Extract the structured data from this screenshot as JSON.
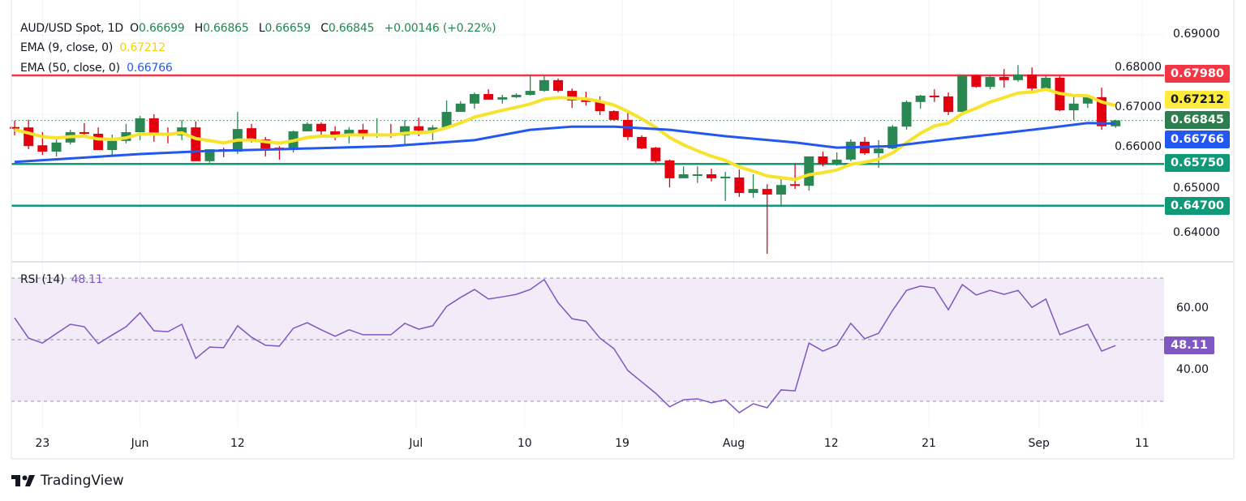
{
  "legend": {
    "symbol": "AUD/USD Spot, 1D",
    "open_label": "O",
    "open": "0.66699",
    "high_label": "H",
    "high": "0.66865",
    "low_label": "L",
    "low": "0.66659",
    "close_label": "C",
    "close": "0.66845",
    "change": "+0.00146 (+0.22%)",
    "ema9_label": "EMA (9, close, 0)",
    "ema9_value": "0.67212",
    "ema50_label": "EMA (50, close, 0)",
    "ema50_value": "0.66766",
    "rsi_label": "RSI (14)",
    "rsi_value": "48.11"
  },
  "badges": {
    "resistance": "0.67980",
    "ema9": "0.67212",
    "close": "0.66845",
    "ema50": "0.66766",
    "support1": "0.65750",
    "support2": "0.64700",
    "rsi": "48.11"
  },
  "colors": {
    "up": "#2b8752",
    "down": "#e3000f",
    "ema9": "#f7e32d",
    "ema50": "#2358f0",
    "resistance": "#f23645",
    "support": "#0f9979",
    "rsi": "#7e57c2",
    "rsi_band": "#f1ecf8"
  },
  "branding": "TradingView",
  "chart_data": {
    "type": "candlestick",
    "title": "AUD/USD Spot, 1D",
    "price_ticks": [
      "0.69000",
      "0.68000",
      "0.67000",
      "0.66000",
      "0.65000",
      "0.64000"
    ],
    "price_range": [
      0.6335,
      0.6988
    ],
    "rsi_ticks": [
      "60.00",
      "40.00"
    ],
    "rsi_levels": [
      70,
      50,
      30
    ],
    "rsi_range": [
      23.5,
      73.5
    ],
    "horizontal_levels": [
      {
        "value": 0.6798,
        "kind": "resistance"
      },
      {
        "value": 0.6575,
        "kind": "support"
      },
      {
        "value": 0.647,
        "kind": "support"
      }
    ],
    "x_ticks": [
      {
        "label": "23",
        "index": 2
      },
      {
        "label": "Jun",
        "index": 9
      },
      {
        "label": "12",
        "index": 16
      },
      {
        "label": "Jul",
        "index": 28.8
      },
      {
        "label": "10",
        "index": 36.6
      },
      {
        "label": "19",
        "index": 43.6
      },
      {
        "label": "Aug",
        "index": 51.6
      },
      {
        "label": "12",
        "index": 58.6
      },
      {
        "label": "21",
        "index": 65.6
      },
      {
        "label": "Sep",
        "index": 73.5
      },
      {
        "label": "11",
        "index": 80.9
      }
    ],
    "ohlc": [
      [
        0.6668,
        0.6684,
        0.6647,
        0.6666
      ],
      [
        0.6667,
        0.6686,
        0.6612,
        0.662
      ],
      [
        0.6622,
        0.6655,
        0.6598,
        0.6606
      ],
      [
        0.6606,
        0.6637,
        0.6594,
        0.6629
      ],
      [
        0.6629,
        0.6661,
        0.6624,
        0.6655
      ],
      [
        0.6655,
        0.6678,
        0.6643,
        0.6651
      ],
      [
        0.6651,
        0.6667,
        0.661,
        0.661
      ],
      [
        0.661,
        0.6649,
        0.6594,
        0.6633
      ],
      [
        0.6633,
        0.6676,
        0.6627,
        0.6655
      ],
      [
        0.6655,
        0.6696,
        0.6635,
        0.669
      ],
      [
        0.669,
        0.67,
        0.6631,
        0.6649
      ],
      [
        0.6651,
        0.6667,
        0.6627,
        0.6649
      ],
      [
        0.6647,
        0.6686,
        0.6635,
        0.6667
      ],
      [
        0.6667,
        0.6682,
        0.6582,
        0.6582
      ],
      [
        0.6582,
        0.6612,
        0.6578,
        0.6612
      ],
      [
        0.6612,
        0.6616,
        0.6592,
        0.6606
      ],
      [
        0.6606,
        0.6706,
        0.66,
        0.6663
      ],
      [
        0.6665,
        0.6676,
        0.6629,
        0.6637
      ],
      [
        0.6637,
        0.6643,
        0.6594,
        0.6614
      ],
      [
        0.6616,
        0.662,
        0.6586,
        0.6612
      ],
      [
        0.6612,
        0.6659,
        0.6604,
        0.6657
      ],
      [
        0.6657,
        0.668,
        0.6657,
        0.6676
      ],
      [
        0.6676,
        0.668,
        0.6649,
        0.6657
      ],
      [
        0.6657,
        0.667,
        0.6635,
        0.6645
      ],
      [
        0.6645,
        0.6668,
        0.6627,
        0.6661
      ],
      [
        0.6661,
        0.6676,
        0.6637,
        0.6647
      ],
      [
        0.6647,
        0.669,
        0.6641,
        0.6649
      ],
      [
        0.6649,
        0.6676,
        0.6641,
        0.6647
      ],
      [
        0.6647,
        0.6686,
        0.6623,
        0.667
      ],
      [
        0.667,
        0.6692,
        0.6645,
        0.6659
      ],
      [
        0.6659,
        0.6673,
        0.6635,
        0.6667
      ],
      [
        0.6667,
        0.6735,
        0.6667,
        0.6706
      ],
      [
        0.6706,
        0.6733,
        0.6706,
        0.6727
      ],
      [
        0.6727,
        0.6755,
        0.6714,
        0.6751
      ],
      [
        0.6751,
        0.6763,
        0.6737,
        0.6737
      ],
      [
        0.6737,
        0.6749,
        0.6727,
        0.6743
      ],
      [
        0.6743,
        0.6753,
        0.6741,
        0.6749
      ],
      [
        0.6749,
        0.68,
        0.6747,
        0.6759
      ],
      [
        0.6759,
        0.6796,
        0.6757,
        0.6786
      ],
      [
        0.6786,
        0.679,
        0.6755,
        0.6759
      ],
      [
        0.6759,
        0.6765,
        0.6716,
        0.6735
      ],
      [
        0.6737,
        0.6757,
        0.6722,
        0.6731
      ],
      [
        0.6731,
        0.6745,
        0.6698,
        0.6708
      ],
      [
        0.6708,
        0.671,
        0.6684,
        0.6686
      ],
      [
        0.6686,
        0.6704,
        0.6635,
        0.6643
      ],
      [
        0.6643,
        0.6647,
        0.6612,
        0.6614
      ],
      [
        0.6616,
        0.6618,
        0.6578,
        0.6582
      ],
      [
        0.6584,
        0.6586,
        0.6516,
        0.6539
      ],
      [
        0.6539,
        0.6569,
        0.6539,
        0.6549
      ],
      [
        0.6547,
        0.6569,
        0.6527,
        0.6549
      ],
      [
        0.6549,
        0.6563,
        0.6531,
        0.6539
      ],
      [
        0.6539,
        0.6555,
        0.6482,
        0.6543
      ],
      [
        0.6541,
        0.6561,
        0.6492,
        0.6502
      ],
      [
        0.6502,
        0.6549,
        0.649,
        0.6512
      ],
      [
        0.6512,
        0.6524,
        0.6349,
        0.6498
      ],
      [
        0.6498,
        0.6543,
        0.6471,
        0.6522
      ],
      [
        0.6524,
        0.6575,
        0.6512,
        0.652
      ],
      [
        0.652,
        0.6594,
        0.6508,
        0.6594
      ],
      [
        0.6594,
        0.6606,
        0.6569,
        0.6575
      ],
      [
        0.6575,
        0.6604,
        0.6571,
        0.6586
      ],
      [
        0.6586,
        0.6637,
        0.6582,
        0.6631
      ],
      [
        0.6631,
        0.6643,
        0.6598,
        0.6602
      ],
      [
        0.6602,
        0.6635,
        0.6565,
        0.6614
      ],
      [
        0.6614,
        0.6673,
        0.6612,
        0.6669
      ],
      [
        0.6669,
        0.6735,
        0.6661,
        0.6731
      ],
      [
        0.6731,
        0.6749,
        0.6714,
        0.6747
      ],
      [
        0.6747,
        0.6763,
        0.6731,
        0.6745
      ],
      [
        0.6745,
        0.6755,
        0.6698,
        0.6706
      ],
      [
        0.6706,
        0.68,
        0.6706,
        0.6798
      ],
      [
        0.6798,
        0.68,
        0.6767,
        0.6769
      ],
      [
        0.6769,
        0.6798,
        0.6763,
        0.6794
      ],
      [
        0.6794,
        0.6814,
        0.6767,
        0.6786
      ],
      [
        0.6786,
        0.6824,
        0.6782,
        0.68
      ],
      [
        0.68,
        0.6818,
        0.6753,
        0.6765
      ],
      [
        0.6765,
        0.6796,
        0.6759,
        0.6792
      ],
      [
        0.6792,
        0.6796,
        0.6708,
        0.671
      ],
      [
        0.671,
        0.6749,
        0.6686,
        0.6727
      ],
      [
        0.6727,
        0.6743,
        0.6716,
        0.6743
      ],
      [
        0.6743,
        0.6767,
        0.6661,
        0.667
      ],
      [
        0.66699,
        0.66865,
        0.66659,
        0.66845
      ]
    ],
    "ema9_seed": 0.666,
    "ema50_points": [
      [
        0,
        0.658
      ],
      [
        9,
        0.66
      ],
      [
        14,
        0.6608
      ],
      [
        19,
        0.6612
      ],
      [
        27,
        0.662
      ],
      [
        33,
        0.6635
      ],
      [
        37,
        0.6661
      ],
      [
        40,
        0.6669
      ],
      [
        43,
        0.6669
      ],
      [
        47,
        0.6661
      ],
      [
        51,
        0.6645
      ],
      [
        56,
        0.6629
      ],
      [
        59,
        0.6616
      ],
      [
        63,
        0.662
      ],
      [
        67,
        0.6637
      ],
      [
        74,
        0.6665
      ],
      [
        77,
        0.6678
      ],
      [
        79,
        0.66766
      ]
    ],
    "rsi": [
      57.1,
      50.5,
      48.9,
      52.0,
      55.0,
      54.2,
      48.7,
      51.5,
      54.2,
      58.7,
      52.9,
      52.6,
      55.0,
      43.9,
      47.6,
      47.4,
      54.5,
      50.8,
      48.2,
      47.9,
      53.7,
      55.5,
      53.2,
      51.1,
      53.2,
      51.6,
      51.6,
      51.6,
      55.3,
      53.4,
      54.5,
      60.8,
      63.7,
      66.3,
      63.2,
      63.9,
      64.7,
      66.3,
      69.5,
      62.0,
      56.8,
      56.0,
      50.5,
      47.1,
      40.0,
      36.3,
      32.6,
      28.2,
      30.5,
      30.8,
      29.5,
      30.5,
      26.3,
      29.2,
      27.9,
      33.7,
      33.4,
      48.9,
      46.3,
      48.2,
      55.3,
      50.3,
      52.1,
      59.5,
      66.0,
      67.4,
      66.8,
      59.7,
      67.9,
      64.5,
      66.0,
      64.7,
      66.0,
      60.5,
      63.2,
      51.6,
      53.3,
      55.0,
      46.3,
      48.11
    ]
  }
}
